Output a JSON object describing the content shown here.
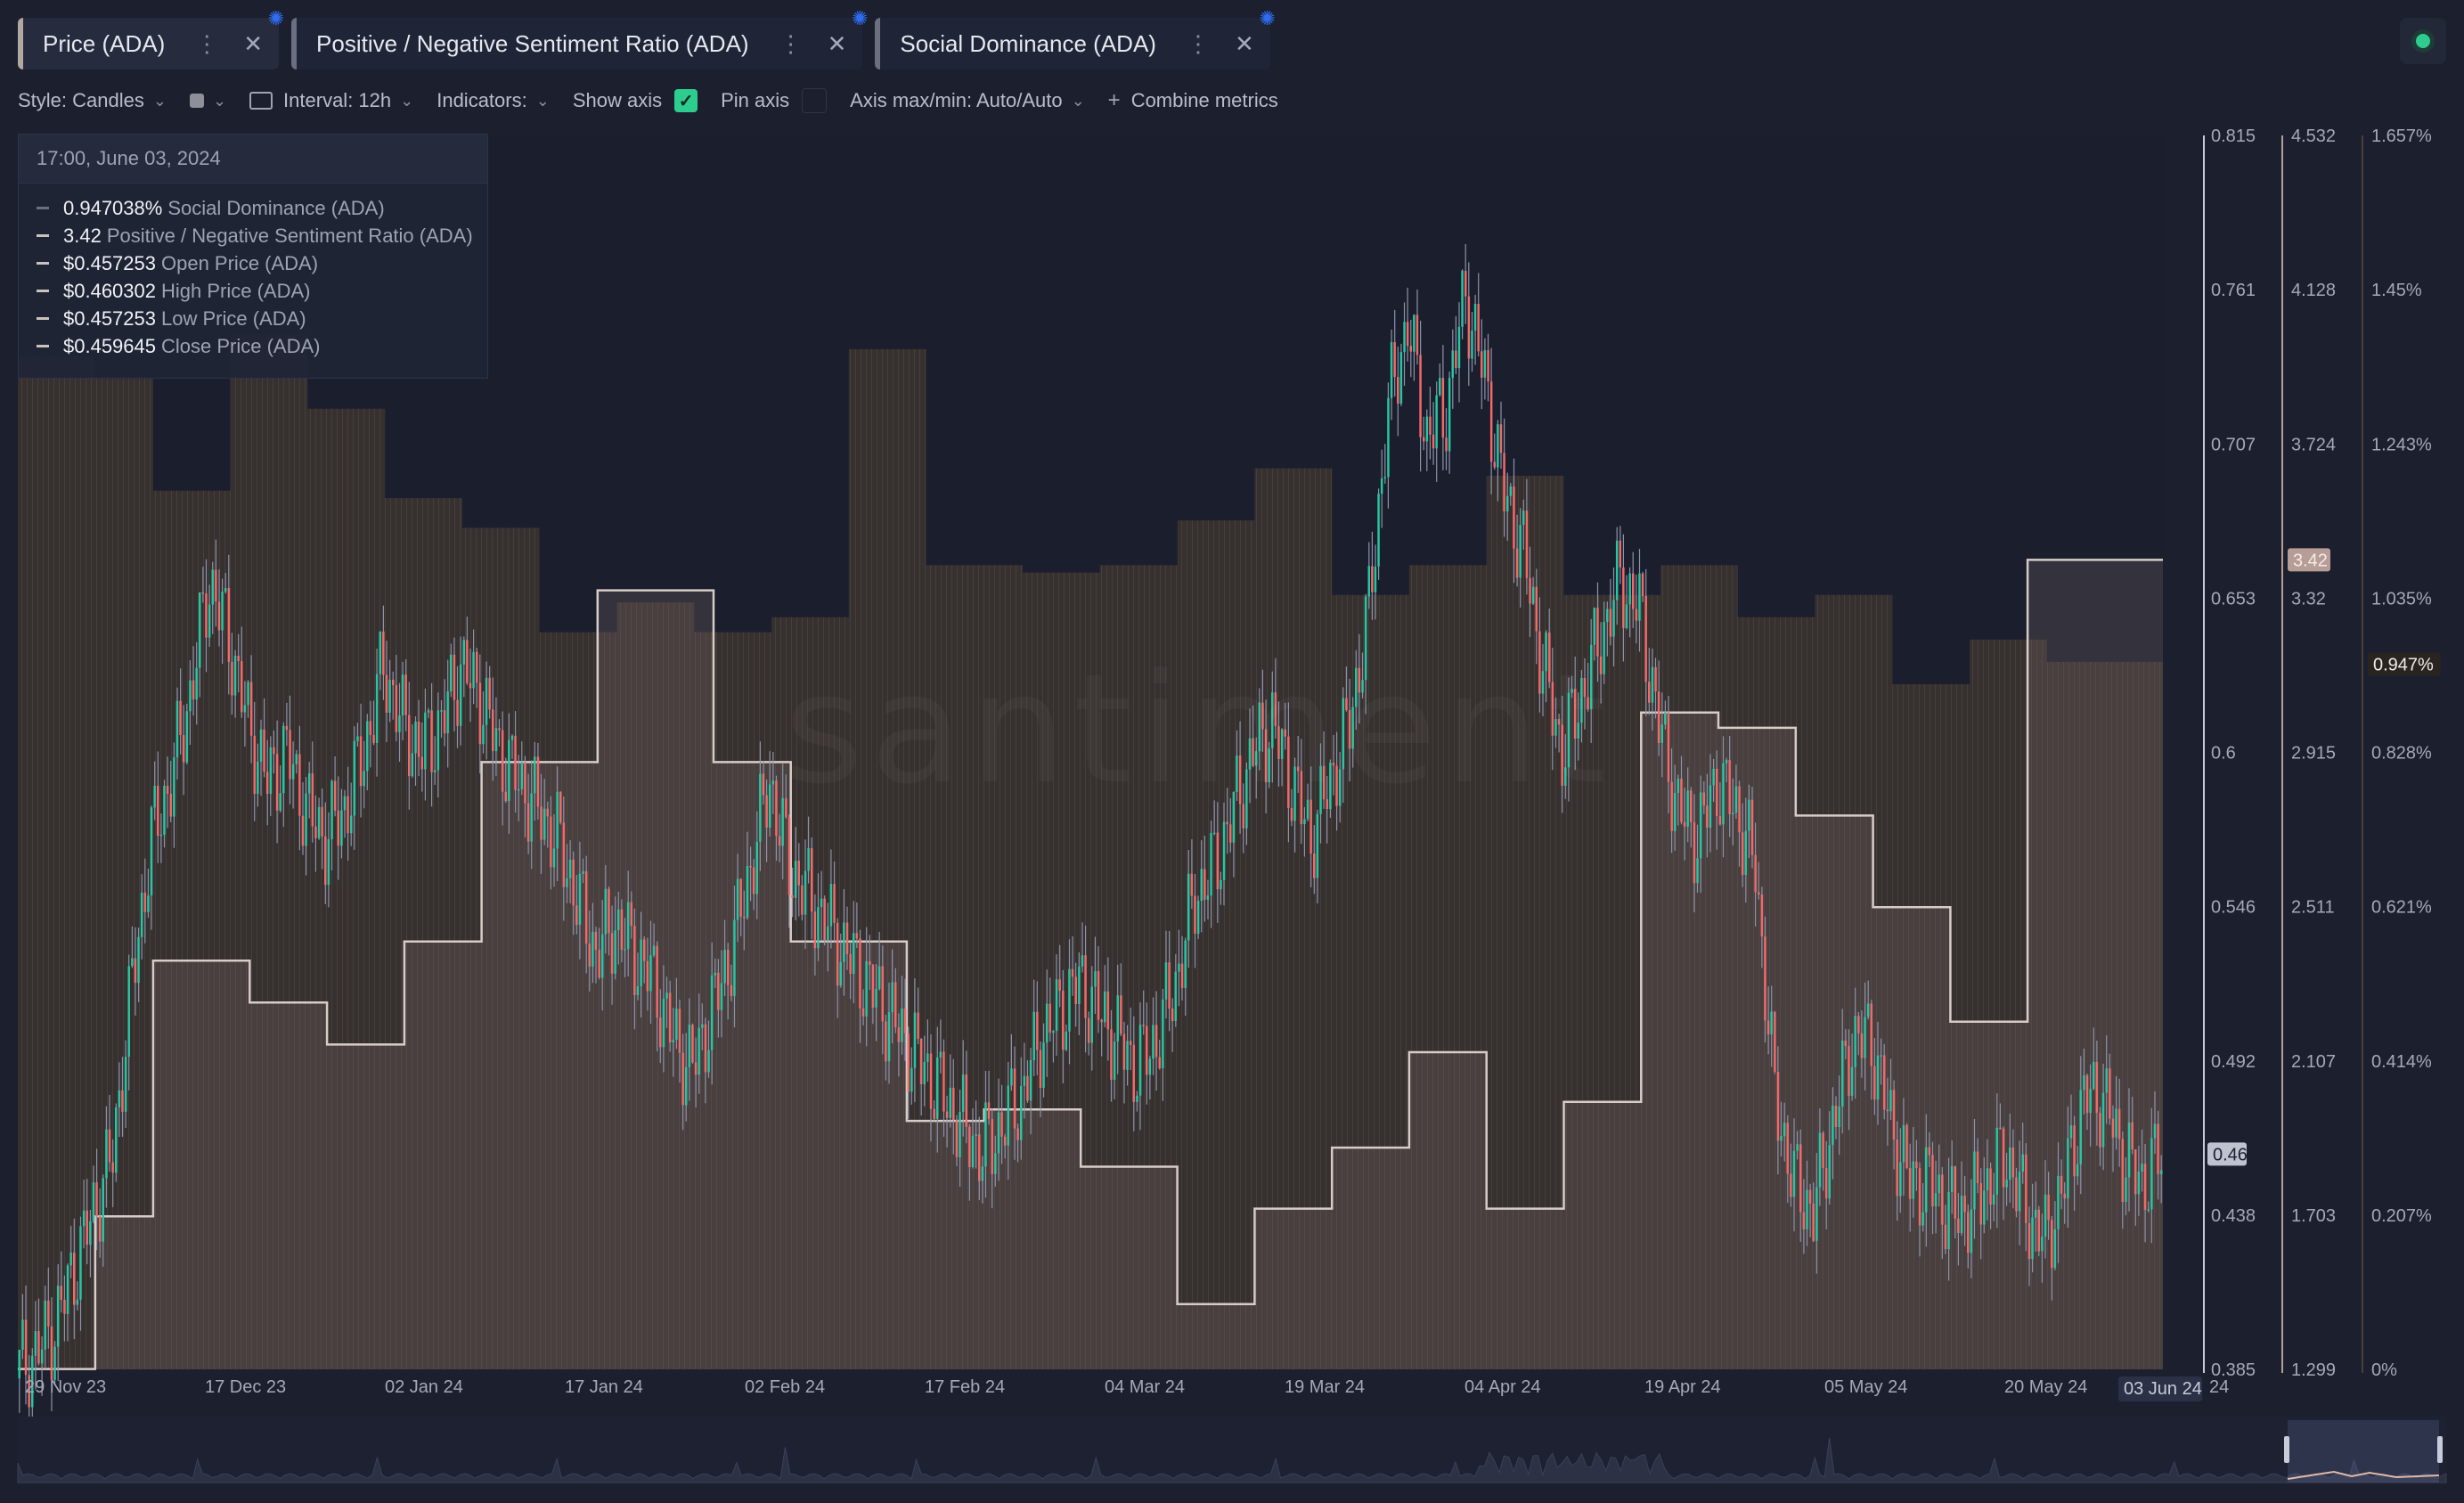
{
  "tabs": [
    {
      "label": "Price (ADA)",
      "active": true
    },
    {
      "label": "Positive / Negative Sentiment Ratio (ADA)",
      "active": false
    },
    {
      "label": "Social Dominance (ADA)",
      "active": false
    }
  ],
  "toolbar": {
    "style": "Style: Candles",
    "interval": "Interval: 12h",
    "indicators": "Indicators:",
    "show_axis": "Show axis",
    "show_axis_checked": true,
    "pin_axis": "Pin axis",
    "pin_axis_checked": false,
    "axis_maxmin": "Axis max/min: Auto/Auto",
    "combine": "Combine metrics"
  },
  "tooltip": {
    "timestamp": "17:00, June 03, 2024",
    "rows": [
      {
        "value": "0.947038%",
        "label": "Social Dominance (ADA)"
      },
      {
        "value": "3.42",
        "label": "Positive / Negative Sentiment Ratio (ADA)"
      },
      {
        "value": "$0.457253",
        "label": "Open Price (ADA)"
      },
      {
        "value": "$0.460302",
        "label": "High Price (ADA)"
      },
      {
        "value": "$0.457253",
        "label": "Low Price (ADA)"
      },
      {
        "value": "$0.459645",
        "label": "Close Price (ADA)"
      }
    ]
  },
  "colors": {
    "background": "#1b1f2e",
    "up": "#26c6a2",
    "down": "#f06a6a",
    "sentiment": "#d8ccc6",
    "dominance": "#4a3f3a",
    "axis_badge_price": "#bfc3cf",
    "axis_badge_sentiment": "#b89d96",
    "toggle_on": "#2ecc8f"
  },
  "chart_data": {
    "type": "candlestick",
    "interval": "12h",
    "x_labels": [
      "29 Nov 23",
      "17 Dec 23",
      "02 Jan 24",
      "17 Jan 24",
      "02 Feb 24",
      "17 Feb 24",
      "04 Mar 24",
      "19 Mar 24",
      "04 Apr 24",
      "19 Apr 24",
      "05 May 24",
      "20 May 24"
    ],
    "current_x_label": "03 Jun 24",
    "axes": {
      "price": {
        "ticks": [
          "0.815",
          "0.761",
          "0.707",
          "0.653",
          "0.6",
          "0.546",
          "0.492",
          "0.438",
          "0.385"
        ],
        "min": 0.385,
        "max": 0.815,
        "current": "0.46"
      },
      "sentiment": {
        "ticks": [
          "4.532",
          "4.128",
          "3.724",
          "3.32",
          "2.915",
          "2.511",
          "2.107",
          "1.703",
          "1.299"
        ],
        "min": 1.299,
        "max": 4.532,
        "current": "3.42"
      },
      "dominance": {
        "ticks": [
          "1.657%",
          "1.45%",
          "1.243%",
          "1.035%",
          "0.828%",
          "0.621%",
          "0.414%",
          "0.207%",
          "0%"
        ],
        "min": 0,
        "max": 1.657,
        "current": "0.947%"
      }
    },
    "price_close": [
      0.39,
      0.4,
      0.42,
      0.44,
      0.46,
      0.52,
      0.57,
      0.59,
      0.62,
      0.66,
      0.64,
      0.61,
      0.59,
      0.6,
      0.58,
      0.57,
      0.58,
      0.6,
      0.63,
      0.61,
      0.6,
      0.61,
      0.63,
      0.62,
      0.6,
      0.59,
      0.58,
      0.57,
      0.55,
      0.53,
      0.54,
      0.53,
      0.52,
      0.5,
      0.49,
      0.51,
      0.53,
      0.56,
      0.59,
      0.56,
      0.55,
      0.54,
      0.53,
      0.52,
      0.51,
      0.5,
      0.49,
      0.48,
      0.47,
      0.46,
      0.47,
      0.48,
      0.5,
      0.51,
      0.52,
      0.51,
      0.5,
      0.49,
      0.5,
      0.52,
      0.55,
      0.56,
      0.58,
      0.6,
      0.61,
      0.59,
      0.57,
      0.59,
      0.61,
      0.65,
      0.72,
      0.75,
      0.71,
      0.72,
      0.76,
      0.73,
      0.69,
      0.67,
      0.63,
      0.6,
      0.62,
      0.64,
      0.66,
      0.65,
      0.61,
      0.58,
      0.57,
      0.59,
      0.58,
      0.56,
      0.48,
      0.45,
      0.44,
      0.47,
      0.5,
      0.5,
      0.47,
      0.45,
      0.45,
      0.44,
      0.44,
      0.45,
      0.46,
      0.44,
      0.43,
      0.45,
      0.48,
      0.48,
      0.46,
      0.45,
      0.46
    ],
    "sentiment_steps": [
      1.3,
      1.3,
      1.3,
      1.3,
      1.7,
      1.7,
      1.7,
      2.37,
      2.37,
      2.37,
      2.37,
      2.37,
      2.26,
      2.26,
      2.26,
      2.26,
      2.15,
      2.15,
      2.15,
      2.15,
      2.42,
      2.42,
      2.42,
      2.42,
      2.89,
      2.89,
      2.89,
      2.89,
      2.89,
      2.89,
      3.34,
      3.34,
      3.34,
      3.34,
      3.34,
      3.34,
      2.89,
      2.89,
      2.89,
      2.89,
      2.42,
      2.42,
      2.42,
      2.42,
      2.42,
      2.42,
      1.95,
      1.95,
      1.95,
      1.95,
      1.98,
      1.98,
      1.98,
      1.98,
      1.98,
      1.83,
      1.83,
      1.83,
      1.83,
      1.83,
      1.47,
      1.47,
      1.47,
      1.47,
      1.72,
      1.72,
      1.72,
      1.72,
      1.88,
      1.88,
      1.88,
      1.88,
      2.13,
      2.13,
      2.13,
      2.13,
      1.72,
      1.72,
      1.72,
      1.72,
      2.0,
      2.0,
      2.0,
      2.0,
      3.02,
      3.02,
      3.02,
      3.02,
      2.98,
      2.98,
      2.98,
      2.98,
      2.75,
      2.75,
      2.75,
      2.75,
      2.51,
      2.51,
      2.51,
      2.51,
      2.21,
      2.21,
      2.21,
      2.21,
      3.42,
      3.42,
      3.42,
      3.42,
      3.42,
      3.42,
      3.42
    ],
    "dominance_steps": [
      1.36,
      1.36,
      1.36,
      1.36,
      1.33,
      1.33,
      1.33,
      1.18,
      1.18,
      1.18,
      1.18,
      1.39,
      1.39,
      1.39,
      1.39,
      1.29,
      1.29,
      1.29,
      1.29,
      1.17,
      1.17,
      1.17,
      1.17,
      1.13,
      1.13,
      1.13,
      1.13,
      0.99,
      0.99,
      0.99,
      0.99,
      1.03,
      1.03,
      1.03,
      1.03,
      0.99,
      0.99,
      0.99,
      0.99,
      1.01,
      1.01,
      1.01,
      1.01,
      1.37,
      1.37,
      1.37,
      1.37,
      1.08,
      1.08,
      1.08,
      1.08,
      1.08,
      1.07,
      1.07,
      1.07,
      1.07,
      1.08,
      1.08,
      1.08,
      1.08,
      1.14,
      1.14,
      1.14,
      1.14,
      1.21,
      1.21,
      1.21,
      1.21,
      1.04,
      1.04,
      1.04,
      1.04,
      1.08,
      1.08,
      1.08,
      1.08,
      1.2,
      1.2,
      1.2,
      1.2,
      1.04,
      1.04,
      1.04,
      1.04,
      1.04,
      1.08,
      1.08,
      1.08,
      1.08,
      1.01,
      1.01,
      1.01,
      1.01,
      1.04,
      1.04,
      1.04,
      1.04,
      0.92,
      0.92,
      0.92,
      0.92,
      0.98,
      0.98,
      0.98,
      0.98,
      0.95,
      0.95,
      0.95,
      0.95,
      0.95,
      0.95
    ]
  }
}
